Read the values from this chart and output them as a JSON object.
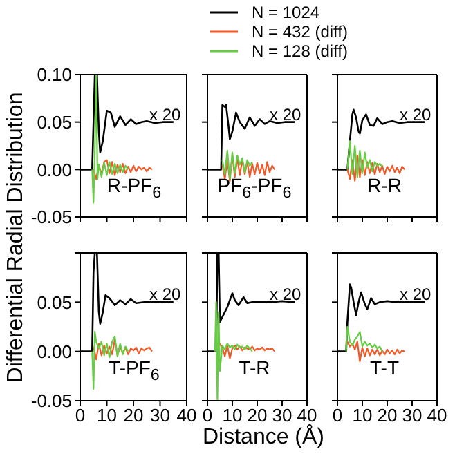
{
  "chart_data": [
    {
      "type": "line",
      "title": "R-PF$_{6}$",
      "annotations": [
        "x 20"
      ],
      "legend": "top",
      "tick_labels": "y",
      "xlim": [
        0,
        40
      ],
      "xticks": [
        0,
        10,
        20,
        30,
        40
      ],
      "ylim": [
        -0.05,
        0.1
      ],
      "yticks": [
        {
          "value": -0.05,
          "label": "-0.05"
        },
        {
          "value": 0,
          "label": "0.00"
        },
        {
          "value": 0.05,
          "label": "0.05"
        },
        {
          "value": 0.1,
          "label": "0.10"
        }
      ],
      "series": [
        {
          "name": "N = 1024",
          "color": "#000000",
          "x": [
            0,
            4.5,
            5,
            5.5,
            6.3,
            7,
            7.5,
            8.5,
            10,
            11.5,
            13,
            15,
            17,
            19,
            21,
            23,
            25,
            28,
            31,
            35
          ],
          "values": [
            0,
            0,
            0.05,
            0.1,
            0.1,
            0.04,
            0.018,
            0.03,
            0.062,
            0.06,
            0.045,
            0.056,
            0.047,
            0.053,
            0.048,
            0.05,
            0.051,
            0.049,
            0.05,
            0.05
          ]
        },
        {
          "name": "N = 432 (diff)",
          "color": "#f05a28",
          "x": [
            5,
            6,
            7,
            8,
            9,
            10,
            11,
            12,
            13,
            14,
            15,
            16,
            17,
            18,
            19,
            20,
            21,
            22,
            23,
            24,
            25,
            26,
            27
          ],
          "values": [
            0,
            -0.01,
            0.005,
            -0.005,
            0.008,
            0.01,
            -0.004,
            0.008,
            -0.006,
            0.005,
            -0.003,
            0.006,
            -0.004,
            0.003,
            -0.003,
            0.004,
            -0.002,
            0.003,
            0,
            0.002,
            -0.002,
            0.002,
            0
          ]
        },
        {
          "name": "N = 128 (diff)",
          "color": "#66cc44",
          "x": [
            4.5,
            5,
            5.5,
            6,
            6.5,
            7,
            8,
            9,
            10,
            11,
            12,
            13,
            14,
            15,
            16,
            17,
            18
          ],
          "values": [
            0,
            -0.035,
            0.02,
            0.1,
            -0.01,
            0.005,
            -0.008,
            0.007,
            -0.006,
            0.008,
            -0.005,
            0.006,
            -0.004,
            0.005,
            -0.003,
            0.004,
            0
          ]
        }
      ]
    },
    {
      "type": "line",
      "title": "PF$_{6}$-PF$_{6}$",
      "annotations": [
        "x 20"
      ],
      "tick_labels": false,
      "xlim": [
        0,
        40
      ],
      "xticks": [
        0,
        10,
        20,
        30,
        40
      ],
      "ylim": [
        -0.05,
        0.1
      ],
      "yticks": [
        -0.05,
        0,
        0.05,
        0.1
      ],
      "series": [
        {
          "color": "#000000",
          "x": [
            0,
            5.5,
            6,
            7,
            7.5,
            8.5,
            9,
            10,
            11.5,
            13,
            15,
            17,
            19,
            21,
            23,
            25,
            28,
            31,
            35
          ],
          "values": [
            0,
            0,
            0.068,
            0.066,
            0.068,
            0.045,
            0.032,
            0.04,
            0.06,
            0.05,
            0.043,
            0.055,
            0.046,
            0.053,
            0.048,
            0.051,
            0.049,
            0.05,
            0.05
          ]
        },
        {
          "color": "#f05a28",
          "x": [
            6,
            7,
            8,
            9,
            10,
            11,
            12,
            13,
            14,
            15,
            16,
            17,
            18,
            19,
            20,
            21,
            22,
            23,
            24,
            25,
            26,
            27
          ],
          "values": [
            0.005,
            -0.01,
            0.01,
            -0.012,
            0.015,
            -0.008,
            0.012,
            -0.006,
            0.01,
            -0.005,
            0.008,
            -0.008,
            0.006,
            -0.005,
            0.007,
            -0.004,
            0.005,
            -0.006,
            0.008,
            -0.003,
            0.004,
            0
          ]
        },
        {
          "color": "#66cc44",
          "x": [
            6,
            7,
            8,
            9,
            10,
            11,
            12,
            13,
            14,
            15,
            16,
            17,
            18
          ],
          "values": [
            0.01,
            -0.005,
            0.02,
            -0.01,
            0.018,
            -0.004,
            0.015,
            0.005,
            0.012,
            -0.003,
            0.01,
            0.004,
            0.008
          ]
        }
      ]
    },
    {
      "type": "line",
      "title": "R-R",
      "annotations": [
        "x 20"
      ],
      "tick_labels": false,
      "xlim": [
        0,
        40
      ],
      "xticks": [
        0,
        10,
        20,
        30,
        40
      ],
      "ylim": [
        -0.05,
        0.1
      ],
      "yticks": [
        -0.05,
        0,
        0.05,
        0.1
      ],
      "series": [
        {
          "color": "#000000",
          "x": [
            0,
            4,
            5,
            6,
            6.5,
            7.5,
            8.5,
            9,
            10,
            11.5,
            13,
            14.5,
            16,
            18,
            20,
            22,
            25,
            28,
            31,
            35
          ],
          "values": [
            0,
            0,
            0.03,
            0.058,
            0.063,
            0.055,
            0.04,
            0.038,
            0.052,
            0.058,
            0.047,
            0.046,
            0.054,
            0.048,
            0.05,
            0.051,
            0.049,
            0.05,
            0.05,
            0.05
          ]
        },
        {
          "color": "#f05a28",
          "x": [
            4,
            5,
            6,
            7,
            8,
            9,
            10,
            11,
            12,
            13,
            14,
            15,
            16,
            17,
            18,
            19,
            20,
            21,
            22,
            23,
            24,
            25,
            26,
            27
          ],
          "values": [
            0,
            -0.01,
            0.01,
            -0.012,
            0.015,
            -0.008,
            0.01,
            -0.006,
            0.008,
            -0.004,
            0.007,
            -0.005,
            0.006,
            -0.003,
            0.004,
            -0.005,
            0.003,
            -0.002,
            0.004,
            -0.003,
            0.002,
            -0.004,
            0.003,
            0
          ]
        },
        {
          "color": "#66cc44",
          "x": [
            4,
            5,
            6,
            7,
            8,
            9,
            10,
            11,
            12,
            13,
            14,
            15,
            16,
            17,
            18
          ],
          "values": [
            0,
            0.03,
            -0.005,
            0.025,
            -0.008,
            0.02,
            -0.004,
            0.018,
            0.002,
            0.01,
            -0.002,
            0.008,
            0.004,
            0.006,
            0.003
          ]
        }
      ]
    },
    {
      "type": "line",
      "title": "T-PF$_{6}$",
      "annotations": [
        "x 20"
      ],
      "ylabel": "Differential Radial Distribution",
      "xlim": [
        0,
        40
      ],
      "xticks": [
        0,
        10,
        20,
        30,
        40
      ],
      "ylim": [
        -0.05,
        0.1
      ],
      "yticks": [
        {
          "value": -0.05,
          "label": "-0.05"
        },
        {
          "value": 0,
          "label": "0.00"
        },
        {
          "value": 0.05,
          "label": "0.05"
        },
        {
          "value": 0.1,
          "label": null
        }
      ],
      "series": [
        {
          "color": "#000000",
          "x": [
            0,
            4.5,
            5,
            5.5,
            6.3,
            7,
            7.5,
            8.5,
            9.5,
            11,
            13,
            15,
            17,
            19,
            21,
            24,
            28,
            35
          ],
          "values": [
            0,
            0,
            0.08,
            0.1,
            0.1,
            0.04,
            0.028,
            0.04,
            0.057,
            0.054,
            0.047,
            0.052,
            0.048,
            0.053,
            0.049,
            0.05,
            0.05,
            0.05
          ]
        },
        {
          "color": "#f05a28",
          "x": [
            5,
            6,
            7,
            8,
            9,
            10,
            11,
            12,
            13,
            14,
            15,
            16,
            17,
            18,
            19,
            20,
            21,
            22,
            23,
            24,
            25,
            26,
            27
          ],
          "values": [
            0.005,
            -0.008,
            0.008,
            -0.004,
            0.006,
            -0.002,
            0.005,
            -0.003,
            0.012,
            -0.004,
            0.005,
            -0.002,
            0.004,
            -0.003,
            0.003,
            0.001,
            0.004,
            -0.002,
            0.003,
            0.001,
            0.003,
            0.004,
            0
          ]
        },
        {
          "color": "#66cc44",
          "x": [
            4.5,
            5,
            5.5,
            6,
            7,
            8,
            9,
            10,
            11,
            12,
            13,
            14,
            15,
            16,
            17,
            18
          ],
          "values": [
            0,
            -0.038,
            0.02,
            0.01,
            0.003,
            0.01,
            -0.004,
            0.008,
            -0.006,
            0.01,
            0.015,
            -0.005,
            0.008,
            -0.003,
            0.005,
            0
          ]
        }
      ]
    },
    {
      "type": "line",
      "title": "T-R",
      "annotations": [
        "x 20"
      ],
      "xlabel": "Distance (Å)",
      "tick_labels": "x",
      "xlim": [
        0,
        40
      ],
      "xticks": [
        0,
        10,
        20,
        30,
        40
      ],
      "ylim": [
        -0.05,
        0.1
      ],
      "yticks": [
        -0.05,
        0,
        0.05,
        0.1
      ],
      "series": [
        {
          "color": "#000000",
          "x": [
            0,
            3.5,
            4,
            4.5,
            5,
            6,
            7,
            8,
            9,
            10,
            11,
            12.5,
            14.5,
            16,
            18,
            21,
            25,
            30,
            35
          ],
          "values": [
            0,
            0,
            0.1,
            0.1,
            0.03,
            0.035,
            0.04,
            0.045,
            0.052,
            0.059,
            0.052,
            0.047,
            0.055,
            0.049,
            0.05,
            0.05,
            0.05,
            0.051,
            0.05
          ]
        },
        {
          "color": "#f05a28",
          "x": [
            4,
            5,
            6,
            7,
            8,
            9,
            10,
            11,
            12,
            13,
            14,
            15,
            16,
            17,
            18,
            19,
            20,
            21,
            22,
            23,
            24,
            25,
            26,
            27
          ],
          "values": [
            0,
            0.008,
            0.004,
            -0.005,
            0.006,
            -0.007,
            0.003,
            0.006,
            0.002,
            0.005,
            0.001,
            0.004,
            0.003,
            0.002,
            0.005,
            0.001,
            0.003,
            0.002,
            0.004,
            0.001,
            0.003,
            0.002,
            0.003,
            0
          ]
        },
        {
          "color": "#66cc44",
          "x": [
            3,
            3.5,
            4,
            4.5,
            5,
            6,
            7,
            8,
            9,
            10,
            11,
            12,
            13,
            14,
            15,
            16,
            17,
            18
          ],
          "values": [
            0,
            0.05,
            -0.05,
            0.04,
            -0.02,
            0.006,
            0.002,
            0.008,
            0.004,
            0.006,
            0.002,
            0.007,
            0.004,
            0.005,
            0.002,
            0.006,
            0.003,
            0
          ]
        }
      ]
    },
    {
      "type": "line",
      "title": "T-T",
      "annotations": [
        "x 20"
      ],
      "tick_labels": "x",
      "xlim": [
        0,
        40
      ],
      "xticks": [
        0,
        10,
        20,
        30,
        40
      ],
      "ylim": [
        -0.05,
        0.1
      ],
      "yticks": [
        -0.05,
        0,
        0.05,
        0.1
      ],
      "series": [
        {
          "color": "#000000",
          "x": [
            0,
            3.5,
            4,
            5,
            5.5,
            6.5,
            7.5,
            8.5,
            9.5,
            11,
            12,
            13.5,
            15,
            17,
            20,
            24,
            28,
            35
          ],
          "values": [
            0,
            0,
            0.03,
            0.068,
            0.065,
            0.05,
            0.037,
            0.05,
            0.06,
            0.048,
            0.043,
            0.054,
            0.048,
            0.05,
            0.051,
            0.05,
            0.05,
            0.05
          ]
        },
        {
          "color": "#f05a28",
          "x": [
            4,
            5,
            6,
            7,
            8,
            9,
            10,
            11,
            12,
            13,
            14,
            15,
            16,
            17,
            18,
            19,
            20,
            21,
            22,
            23,
            24,
            25,
            26,
            27
          ],
          "values": [
            0.01,
            0.005,
            0.008,
            0.002,
            0.01,
            -0.01,
            0.004,
            -0.005,
            0.003,
            -0.004,
            0.002,
            -0.003,
            0.002,
            -0.004,
            0.001,
            -0.003,
            0.002,
            -0.002,
            0.001,
            -0.003,
            0.002,
            -0.002,
            0.001,
            0
          ]
        },
        {
          "color": "#66cc44",
          "x": [
            3.5,
            4,
            5,
            6,
            7,
            8,
            9,
            10,
            11,
            12,
            13,
            14,
            15,
            16,
            17,
            18
          ],
          "values": [
            0,
            0.025,
            0.01,
            0.006,
            0.012,
            0.015,
            0.02,
            0.005,
            0.01,
            0.006,
            0.008,
            0.004,
            0.007,
            0.003,
            0.005,
            0
          ]
        }
      ]
    }
  ]
}
